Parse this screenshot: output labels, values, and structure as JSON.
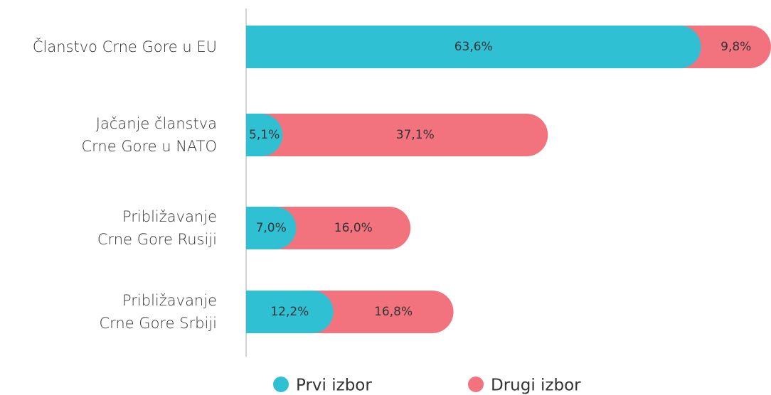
{
  "chart_data": {
    "type": "bar",
    "orientation": "horizontal",
    "stacked": true,
    "categories": [
      "Članstvo Crne Gore u EU",
      "Jačanje članstva\nCrne Gore u NATO",
      "Približavanje\nCrne Gore Rusiji",
      "Približavanje\nCrne Gore Srbiji"
    ],
    "series": [
      {
        "name": "Prvi izbor",
        "color": "#2fc1d3",
        "values": [
          63.6,
          5.1,
          7.0,
          12.2
        ],
        "value_labels": [
          "63,6%",
          "5,1%",
          "7,0%",
          "12,2%"
        ]
      },
      {
        "name": "Drugi izbor",
        "color": "#f2737d",
        "values": [
          9.8,
          37.1,
          16.0,
          16.8
        ],
        "value_labels": [
          "9,8%",
          "37,1%",
          "16,0%",
          "16,8%"
        ]
      }
    ],
    "xlim": [
      0,
      73.4
    ],
    "legend": "bottom"
  }
}
